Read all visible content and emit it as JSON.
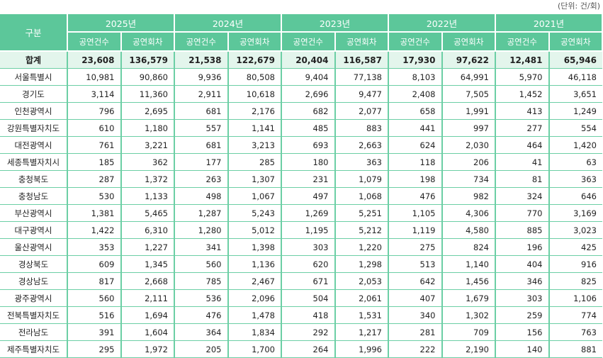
{
  "unit_label": "(단위: 건/회)",
  "header": {
    "category": "구분",
    "years": [
      "2025년",
      "2024년",
      "2023년",
      "2022년",
      "2021년"
    ],
    "sub": [
      "공연건수",
      "공연회차"
    ]
  },
  "colors": {
    "header_bg": "#5cc79a",
    "total_bg": "#e3f5ec",
    "border": "#6ccfa5"
  },
  "rows": [
    {
      "label": "합계",
      "values": [
        "23,608",
        "136,579",
        "21,538",
        "122,679",
        "20,404",
        "116,587",
        "17,930",
        "97,622",
        "12,481",
        "65,946"
      ]
    },
    {
      "label": "서울특별시",
      "values": [
        "10,981",
        "90,860",
        "9,936",
        "80,508",
        "9,404",
        "77,138",
        "8,103",
        "64,991",
        "5,970",
        "46,118"
      ]
    },
    {
      "label": "경기도",
      "values": [
        "3,114",
        "11,360",
        "2,911",
        "10,618",
        "2,696",
        "9,477",
        "2,408",
        "7,505",
        "1,452",
        "3,651"
      ]
    },
    {
      "label": "인천광역시",
      "values": [
        "796",
        "2,695",
        "681",
        "2,176",
        "682",
        "2,077",
        "658",
        "1,991",
        "413",
        "1,249"
      ]
    },
    {
      "label": "강원특별자치도",
      "values": [
        "610",
        "1,180",
        "557",
        "1,141",
        "485",
        "883",
        "441",
        "997",
        "277",
        "554"
      ]
    },
    {
      "label": "대전광역시",
      "values": [
        "761",
        "3,221",
        "681",
        "3,213",
        "693",
        "2,663",
        "624",
        "2,030",
        "464",
        "1,420"
      ]
    },
    {
      "label": "세종특별자치시",
      "values": [
        "185",
        "362",
        "177",
        "285",
        "180",
        "363",
        "118",
        "206",
        "41",
        "63"
      ]
    },
    {
      "label": "충청북도",
      "values": [
        "287",
        "1,372",
        "263",
        "1,307",
        "231",
        "1,079",
        "198",
        "734",
        "81",
        "363"
      ]
    },
    {
      "label": "충청남도",
      "values": [
        "530",
        "1,133",
        "498",
        "1,067",
        "497",
        "1,068",
        "476",
        "982",
        "324",
        "646"
      ]
    },
    {
      "label": "부산광역시",
      "values": [
        "1,381",
        "5,465",
        "1,287",
        "5,243",
        "1,269",
        "5,251",
        "1,105",
        "4,306",
        "770",
        "3,169"
      ]
    },
    {
      "label": "대구광역시",
      "values": [
        "1,422",
        "6,310",
        "1,280",
        "5,012",
        "1,195",
        "5,212",
        "1,119",
        "4,580",
        "885",
        "3,023"
      ]
    },
    {
      "label": "울산광역시",
      "values": [
        "353",
        "1,227",
        "341",
        "1,398",
        "303",
        "1,220",
        "275",
        "824",
        "196",
        "425"
      ]
    },
    {
      "label": "경상북도",
      "values": [
        "609",
        "1,345",
        "560",
        "1,136",
        "620",
        "1,298",
        "513",
        "1,140",
        "404",
        "916"
      ]
    },
    {
      "label": "경상남도",
      "values": [
        "817",
        "2,668",
        "785",
        "2,467",
        "671",
        "2,053",
        "642",
        "1,456",
        "346",
        "825"
      ]
    },
    {
      "label": "광주광역시",
      "values": [
        "560",
        "2,111",
        "536",
        "2,096",
        "504",
        "2,061",
        "407",
        "1,679",
        "303",
        "1,106"
      ]
    },
    {
      "label": "전북특별자치도",
      "values": [
        "516",
        "1,694",
        "476",
        "1,478",
        "418",
        "1,531",
        "340",
        "1,302",
        "259",
        "774"
      ]
    },
    {
      "label": "전라남도",
      "values": [
        "391",
        "1,604",
        "364",
        "1,834",
        "292",
        "1,217",
        "281",
        "709",
        "156",
        "763"
      ]
    },
    {
      "label": "제주특별자치도",
      "values": [
        "295",
        "1,972",
        "205",
        "1,700",
        "264",
        "1,996",
        "222",
        "2,190",
        "140",
        "881"
      ]
    }
  ]
}
